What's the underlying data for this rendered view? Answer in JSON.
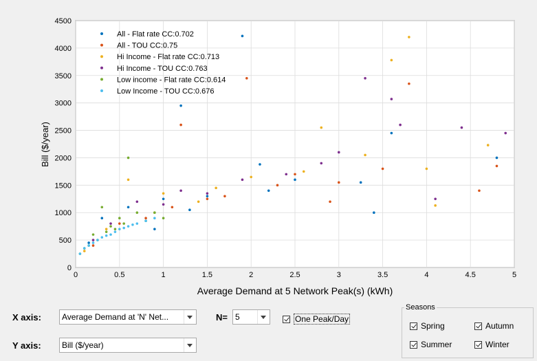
{
  "chart_data": {
    "type": "scatter",
    "xlabel": "Average Demand at 5 Network Peak(s) (kWh)",
    "ylabel": "Bill ($/year)",
    "xlim": [
      0,
      5
    ],
    "ylim": [
      0,
      4500
    ],
    "xticks": [
      "0",
      "0.5",
      "1",
      "1.5",
      "2",
      "2.5",
      "3",
      "3.5",
      "4",
      "4.5",
      "5"
    ],
    "yticks": [
      "0",
      "500",
      "1000",
      "1500",
      "2000",
      "2500",
      "3000",
      "3500",
      "4000",
      "4500"
    ],
    "grid": true,
    "legend_position": "top-left",
    "series": [
      {
        "name": "All - Flat rate   CC:0.702",
        "color": "#0072bd",
        "points": [
          [
            1.9,
            4220
          ],
          [
            1.2,
            2950
          ],
          [
            3.6,
            2450
          ],
          [
            3.25,
            1550
          ],
          [
            2.1,
            1880
          ],
          [
            0.3,
            900
          ],
          [
            0.6,
            1100
          ],
          [
            1.0,
            1250
          ],
          [
            1.5,
            1300
          ],
          [
            2.5,
            1600
          ],
          [
            0.15,
            450
          ],
          [
            4.8,
            2000
          ],
          [
            3.4,
            1000
          ],
          [
            0.9,
            700
          ],
          [
            2.2,
            1400
          ],
          [
            1.3,
            1050
          ]
        ]
      },
      {
        "name": "All - TOU   CC:0.75",
        "color": "#d95319",
        "points": [
          [
            1.95,
            3450
          ],
          [
            1.2,
            2600
          ],
          [
            3.8,
            3350
          ],
          [
            2.5,
            1700
          ],
          [
            4.6,
            1400
          ],
          [
            0.5,
            800
          ],
          [
            1.1,
            1100
          ],
          [
            1.7,
            1300
          ],
          [
            3.0,
            1550
          ],
          [
            0.2,
            400
          ],
          [
            4.8,
            1850
          ],
          [
            2.9,
            1200
          ],
          [
            0.8,
            900
          ],
          [
            1.5,
            1250
          ],
          [
            2.3,
            1500
          ],
          [
            3.5,
            1800
          ]
        ]
      },
      {
        "name": "Hi Income - Flat rate   CC:0.713",
        "color": "#edb120",
        "points": [
          [
            3.8,
            4200
          ],
          [
            3.6,
            3780
          ],
          [
            2.8,
            2550
          ],
          [
            4.7,
            2230
          ],
          [
            4.1,
            1130
          ],
          [
            0.6,
            1600
          ],
          [
            1.0,
            1350
          ],
          [
            1.6,
            1450
          ],
          [
            2.6,
            1750
          ],
          [
            0.35,
            700
          ],
          [
            3.3,
            2050
          ],
          [
            2.0,
            1650
          ],
          [
            0.9,
            1000
          ],
          [
            1.4,
            1200
          ],
          [
            4.0,
            1800
          ],
          [
            0.1,
            300
          ]
        ]
      },
      {
        "name": "Hi Income - TOU   CC:0.763",
        "color": "#7e2f8e",
        "points": [
          [
            3.3,
            3450
          ],
          [
            3.6,
            3070
          ],
          [
            4.4,
            2550
          ],
          [
            4.9,
            2450
          ],
          [
            3.7,
            2600
          ],
          [
            4.1,
            1250
          ],
          [
            0.7,
            1200
          ],
          [
            1.2,
            1400
          ],
          [
            1.9,
            1600
          ],
          [
            2.8,
            1900
          ],
          [
            0.4,
            800
          ],
          [
            1.5,
            1350
          ],
          [
            2.4,
            1700
          ],
          [
            3.0,
            2100
          ],
          [
            0.2,
            500
          ],
          [
            1.0,
            1150
          ]
        ]
      },
      {
        "name": "Low income - Flat rate   CC:0.614",
        "color": "#77ac30",
        "points": [
          [
            0.6,
            2000
          ],
          [
            0.3,
            1100
          ],
          [
            0.5,
            900
          ],
          [
            0.8,
            850
          ],
          [
            0.2,
            600
          ],
          [
            0.4,
            750
          ],
          [
            0.1,
            350
          ],
          [
            0.7,
            1000
          ],
          [
            1.0,
            900
          ],
          [
            0.55,
            800
          ],
          [
            0.25,
            500
          ],
          [
            0.9,
            1000
          ],
          [
            0.15,
            400
          ],
          [
            0.45,
            700
          ],
          [
            0.35,
            650
          ],
          [
            0.05,
            250
          ]
        ]
      },
      {
        "name": "Low Income - TOU   CC:0.676",
        "color": "#4dbeee",
        "points": [
          [
            0.05,
            250
          ],
          [
            0.1,
            350
          ],
          [
            0.2,
            450
          ],
          [
            0.3,
            550
          ],
          [
            0.4,
            600
          ],
          [
            0.5,
            700
          ],
          [
            0.6,
            750
          ],
          [
            0.7,
            800
          ],
          [
            0.8,
            850
          ],
          [
            0.9,
            900
          ],
          [
            0.15,
            400
          ],
          [
            0.25,
            500
          ],
          [
            0.35,
            580
          ],
          [
            0.45,
            650
          ],
          [
            0.55,
            720
          ],
          [
            0.65,
            780
          ]
        ]
      }
    ]
  },
  "controls": {
    "x_axis_label": "X axis:",
    "x_axis_value": "Average Demand at 'N' Net...",
    "n_label": "N=",
    "n_value": "5",
    "one_peak_label": "One Peak/Day",
    "one_peak_checked": true,
    "y_axis_label": "Y axis:",
    "y_axis_value": "Bill ($/year)"
  },
  "seasons": {
    "title": "Seasons",
    "items": [
      {
        "label": "Spring",
        "checked": true
      },
      {
        "label": "Autumn",
        "checked": true
      },
      {
        "label": "Summer",
        "checked": true
      },
      {
        "label": "Winter",
        "checked": true
      }
    ]
  }
}
